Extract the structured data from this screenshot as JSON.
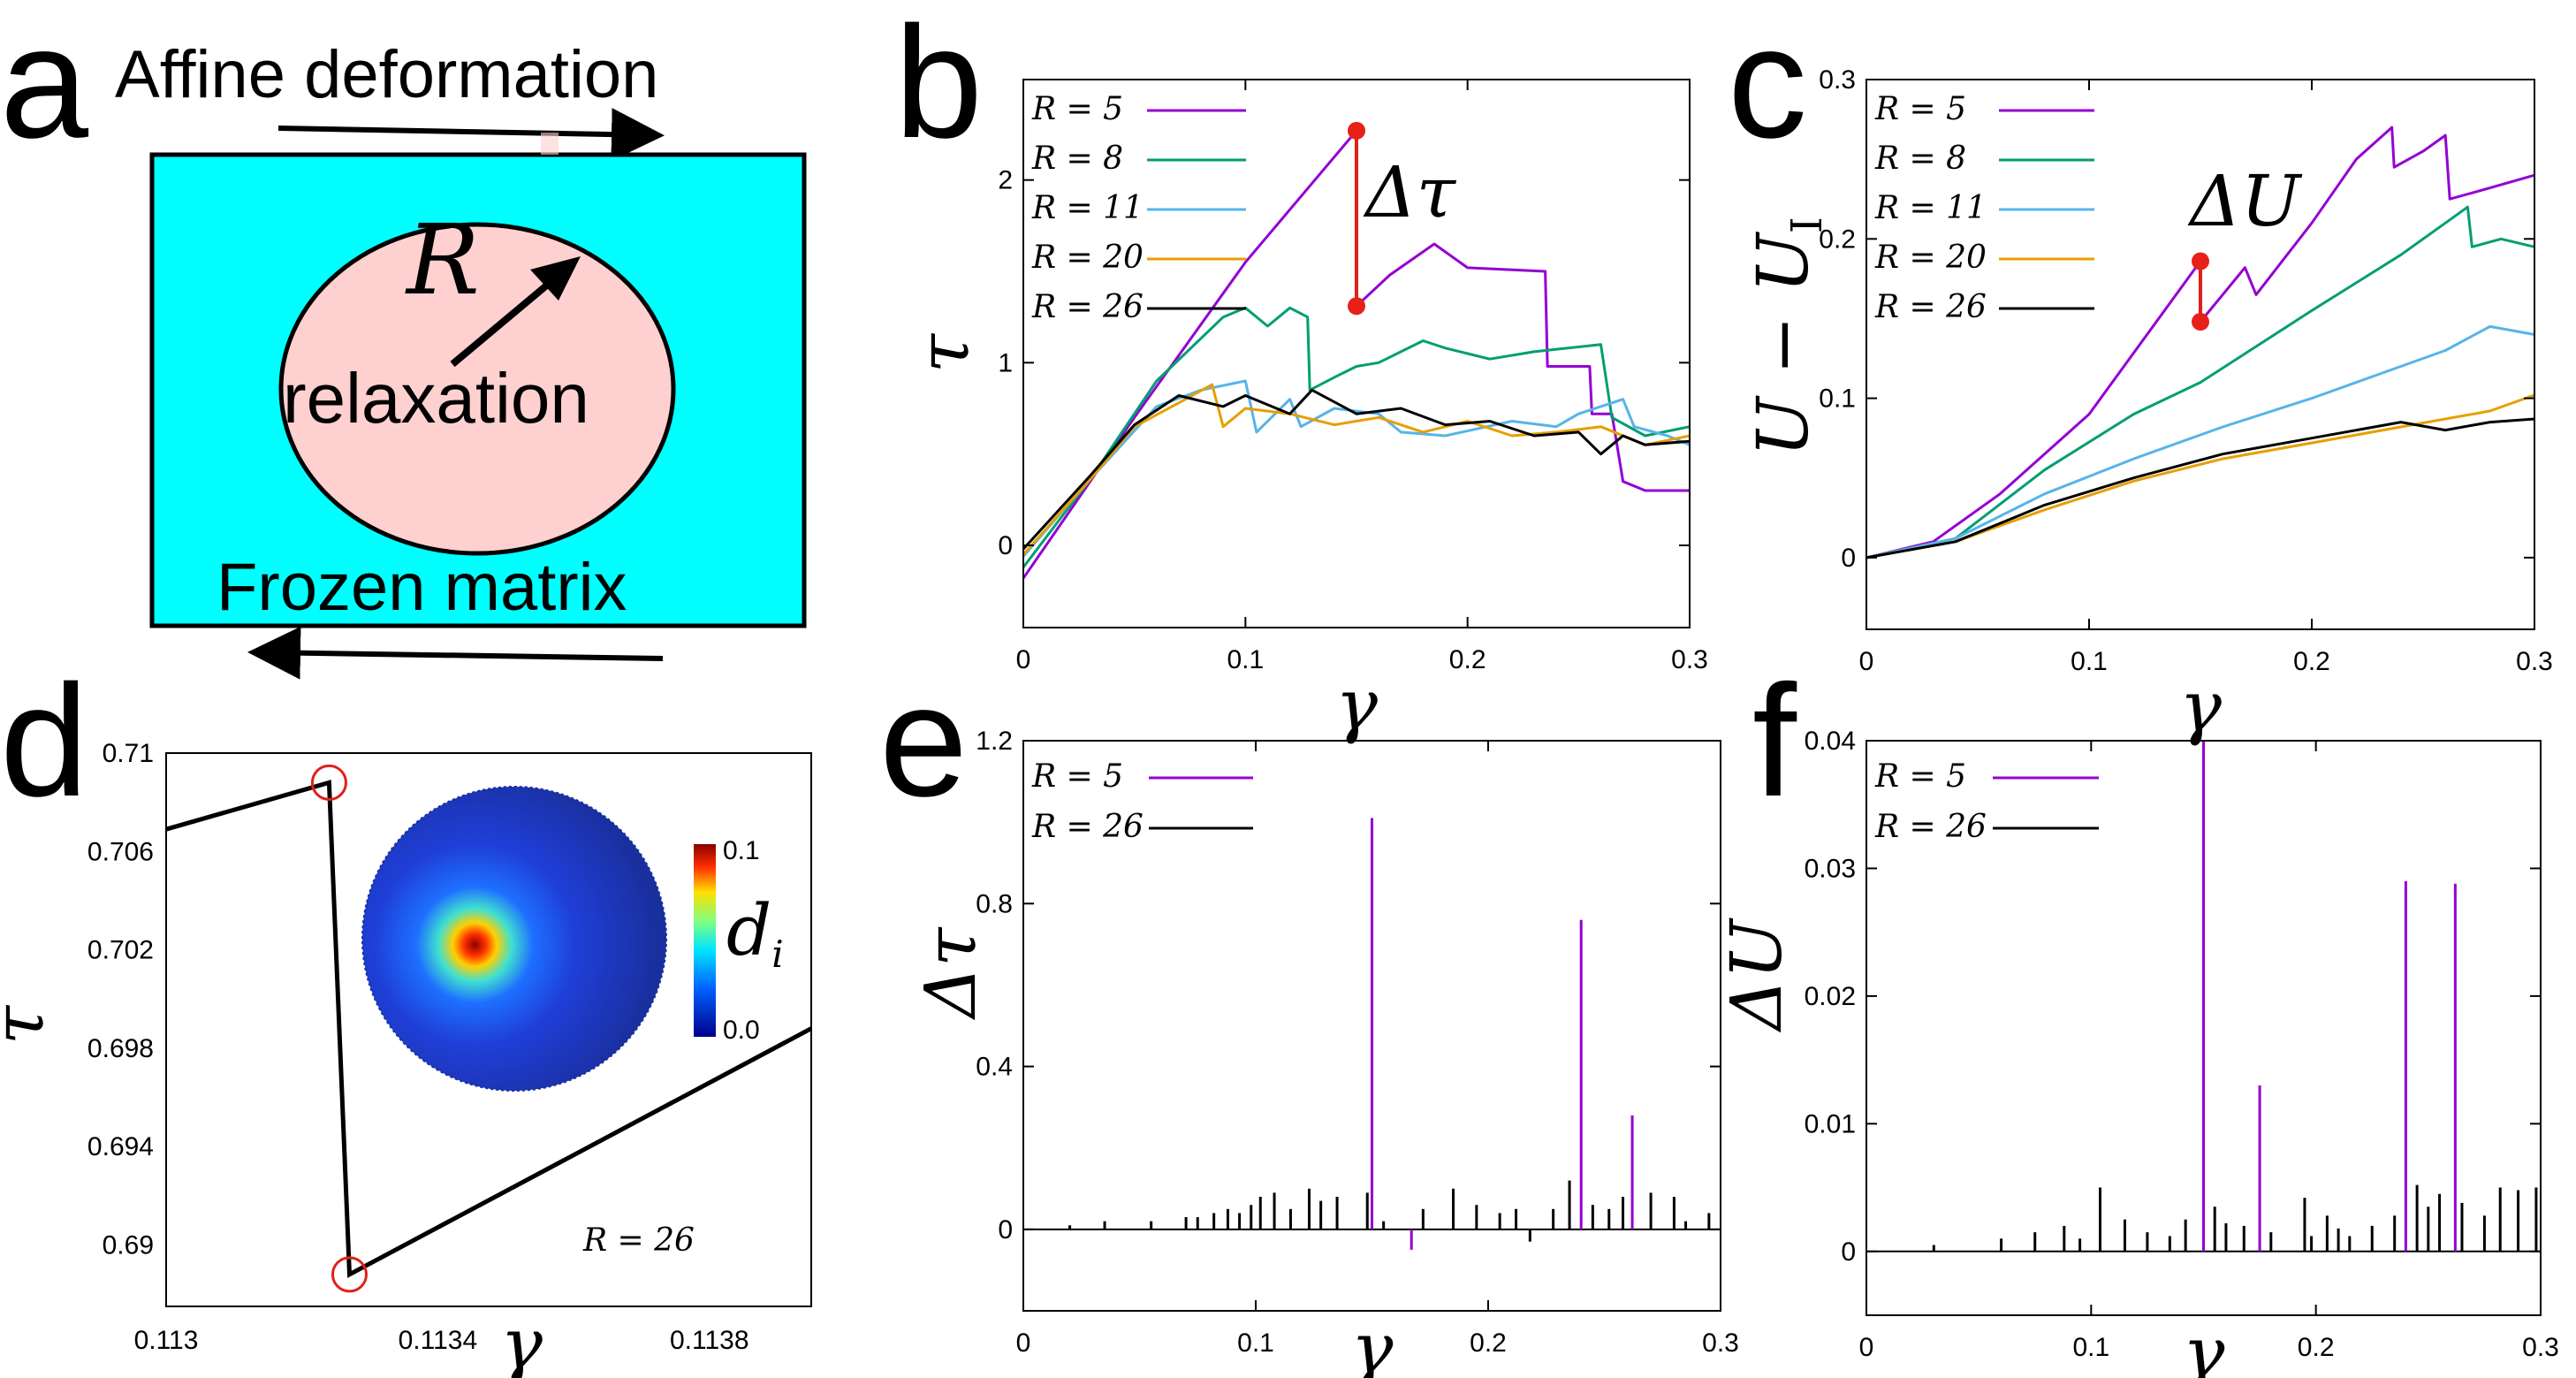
{
  "panel_labels": [
    "a",
    "b",
    "c",
    "d",
    "e",
    "f"
  ],
  "schematic": {
    "top_text": "Affine deformation",
    "bottom_text": "Frozen matrix",
    "radius_label": "R",
    "inner_text": "relaxation",
    "colors": {
      "matrix": "#00ffff",
      "region": "#ffd0d0"
    }
  },
  "chart_data": [
    {
      "id": "b",
      "type": "line",
      "xlabel": "γ",
      "ylabel": "τ",
      "xlim": [
        0,
        0.3
      ],
      "ylim": [
        -0.45,
        2.55
      ],
      "xticks": [
        0,
        0.1,
        0.2,
        0.3
      ],
      "xtick_labels": [
        "0",
        "0.1",
        "0.2",
        "0.3"
      ],
      "yticks": [
        0,
        1,
        2
      ],
      "ytick_labels": [
        "0",
        "1",
        "2"
      ],
      "annotation": {
        "text": "Δτ",
        "x": 0.15,
        "y_top": 2.27,
        "y_bottom": 1.31
      },
      "series": [
        {
          "name": "R = 5",
          "color": "#9400d3",
          "points": [
            [
              0,
              -0.18
            ],
            [
              0.05,
              0.7
            ],
            [
              0.1,
              1.55
            ],
            [
              0.15,
              2.27
            ],
            [
              0.15,
              1.31
            ],
            [
              0.165,
              1.48
            ],
            [
              0.185,
              1.65
            ],
            [
              0.2,
              1.52
            ],
            [
              0.235,
              1.5
            ],
            [
              0.236,
              0.98
            ],
            [
              0.255,
              0.98
            ],
            [
              0.256,
              0.72
            ],
            [
              0.265,
              0.72
            ],
            [
              0.27,
              0.35
            ],
            [
              0.28,
              0.3
            ],
            [
              0.3,
              0.3
            ]
          ]
        },
        {
          "name": "R = 8",
          "color": "#009e73",
          "points": [
            [
              0,
              -0.12
            ],
            [
              0.03,
              0.36
            ],
            [
              0.06,
              0.9
            ],
            [
              0.09,
              1.25
            ],
            [
              0.1,
              1.3
            ],
            [
              0.11,
              1.2
            ],
            [
              0.12,
              1.3
            ],
            [
              0.128,
              1.25
            ],
            [
              0.129,
              0.85
            ],
            [
              0.14,
              0.92
            ],
            [
              0.15,
              0.98
            ],
            [
              0.16,
              1.0
            ],
            [
              0.18,
              1.12
            ],
            [
              0.19,
              1.08
            ],
            [
              0.2,
              1.05
            ],
            [
              0.21,
              1.02
            ],
            [
              0.23,
              1.06
            ],
            [
              0.26,
              1.1
            ],
            [
              0.265,
              0.7
            ],
            [
              0.28,
              0.6
            ],
            [
              0.3,
              0.65
            ]
          ]
        },
        {
          "name": "R = 11",
          "color": "#56b4e9",
          "points": [
            [
              0,
              -0.06
            ],
            [
              0.03,
              0.36
            ],
            [
              0.06,
              0.76
            ],
            [
              0.08,
              0.85
            ],
            [
              0.1,
              0.9
            ],
            [
              0.105,
              0.62
            ],
            [
              0.12,
              0.8
            ],
            [
              0.125,
              0.65
            ],
            [
              0.14,
              0.75
            ],
            [
              0.16,
              0.72
            ],
            [
              0.17,
              0.62
            ],
            [
              0.19,
              0.6
            ],
            [
              0.22,
              0.68
            ],
            [
              0.24,
              0.65
            ],
            [
              0.25,
              0.72
            ],
            [
              0.27,
              0.8
            ],
            [
              0.275,
              0.65
            ],
            [
              0.29,
              0.6
            ],
            [
              0.3,
              0.55
            ]
          ]
        },
        {
          "name": "R = 20",
          "color": "#e69f00",
          "points": [
            [
              0,
              -0.05
            ],
            [
              0.03,
              0.36
            ],
            [
              0.05,
              0.65
            ],
            [
              0.07,
              0.78
            ],
            [
              0.085,
              0.88
            ],
            [
              0.09,
              0.65
            ],
            [
              0.1,
              0.75
            ],
            [
              0.12,
              0.72
            ],
            [
              0.14,
              0.66
            ],
            [
              0.16,
              0.7
            ],
            [
              0.18,
              0.62
            ],
            [
              0.2,
              0.68
            ],
            [
              0.22,
              0.6
            ],
            [
              0.24,
              0.62
            ],
            [
              0.26,
              0.65
            ],
            [
              0.28,
              0.55
            ],
            [
              0.3,
              0.6
            ]
          ]
        },
        {
          "name": "R = 26",
          "color": "#000000",
          "points": [
            [
              0,
              -0.02
            ],
            [
              0.03,
              0.38
            ],
            [
              0.05,
              0.66
            ],
            [
              0.07,
              0.82
            ],
            [
              0.09,
              0.76
            ],
            [
              0.1,
              0.82
            ],
            [
              0.12,
              0.72
            ],
            [
              0.13,
              0.85
            ],
            [
              0.15,
              0.72
            ],
            [
              0.17,
              0.75
            ],
            [
              0.19,
              0.66
            ],
            [
              0.21,
              0.68
            ],
            [
              0.23,
              0.6
            ],
            [
              0.25,
              0.62
            ],
            [
              0.26,
              0.5
            ],
            [
              0.27,
              0.6
            ],
            [
              0.28,
              0.55
            ],
            [
              0.3,
              0.57
            ]
          ]
        }
      ]
    },
    {
      "id": "c",
      "type": "line",
      "xlabel": "γ",
      "ylabel": "U − U",
      "ylabel_subscript": "I",
      "xlim": [
        0,
        0.3
      ],
      "ylim": [
        -0.045,
        0.3
      ],
      "xticks": [
        0,
        0.1,
        0.2,
        0.3
      ],
      "xtick_labels": [
        "0",
        "0.1",
        "0.2",
        "0.3"
      ],
      "yticks": [
        0,
        0.1,
        0.2,
        0.3
      ],
      "ytick_labels": [
        "0",
        "0.1",
        "0.2",
        "0.3"
      ],
      "annotation": {
        "text": "ΔU",
        "x": 0.15,
        "y_top": 0.186,
        "y_bottom": 0.148
      },
      "series": [
        {
          "name": "R = 5",
          "color": "#9400d3",
          "points": [
            [
              0,
              0
            ],
            [
              0.03,
              0.01
            ],
            [
              0.06,
              0.04
            ],
            [
              0.1,
              0.09
            ],
            [
              0.15,
              0.186
            ],
            [
              0.15,
              0.148
            ],
            [
              0.16,
              0.165
            ],
            [
              0.17,
              0.182
            ],
            [
              0.175,
              0.165
            ],
            [
              0.2,
              0.21
            ],
            [
              0.22,
              0.25
            ],
            [
              0.236,
              0.27
            ],
            [
              0.237,
              0.245
            ],
            [
              0.25,
              0.255
            ],
            [
              0.26,
              0.265
            ],
            [
              0.262,
              0.225
            ],
            [
              0.28,
              0.232
            ],
            [
              0.3,
              0.24
            ]
          ]
        },
        {
          "name": "R = 8",
          "color": "#009e73",
          "points": [
            [
              0,
              0
            ],
            [
              0.04,
              0.012
            ],
            [
              0.08,
              0.055
            ],
            [
              0.12,
              0.09
            ],
            [
              0.15,
              0.11
            ],
            [
              0.2,
              0.155
            ],
            [
              0.24,
              0.19
            ],
            [
              0.26,
              0.21
            ],
            [
              0.27,
              0.22
            ],
            [
              0.272,
              0.195
            ],
            [
              0.285,
              0.2
            ],
            [
              0.3,
              0.195
            ]
          ]
        },
        {
          "name": "R = 11",
          "color": "#56b4e9",
          "points": [
            [
              0,
              0
            ],
            [
              0.04,
              0.012
            ],
            [
              0.08,
              0.04
            ],
            [
              0.12,
              0.062
            ],
            [
              0.16,
              0.082
            ],
            [
              0.2,
              0.1
            ],
            [
              0.24,
              0.12
            ],
            [
              0.26,
              0.13
            ],
            [
              0.28,
              0.145
            ],
            [
              0.3,
              0.14
            ]
          ]
        },
        {
          "name": "R = 20",
          "color": "#e69f00",
          "points": [
            [
              0,
              0
            ],
            [
              0.04,
              0.01
            ],
            [
              0.08,
              0.03
            ],
            [
              0.12,
              0.048
            ],
            [
              0.16,
              0.062
            ],
            [
              0.2,
              0.072
            ],
            [
              0.24,
              0.082
            ],
            [
              0.28,
              0.092
            ],
            [
              0.3,
              0.102
            ]
          ]
        },
        {
          "name": "R = 26",
          "color": "#000000",
          "points": [
            [
              0,
              0
            ],
            [
              0.04,
              0.01
            ],
            [
              0.08,
              0.033
            ],
            [
              0.12,
              0.05
            ],
            [
              0.16,
              0.065
            ],
            [
              0.2,
              0.075
            ],
            [
              0.24,
              0.085
            ],
            [
              0.26,
              0.08
            ],
            [
              0.28,
              0.085
            ],
            [
              0.3,
              0.087
            ]
          ]
        }
      ]
    },
    {
      "id": "d",
      "type": "line",
      "xlabel": "γ",
      "ylabel": "τ",
      "xlim": [
        0.113,
        0.11395
      ],
      "ylim": [
        0.6875,
        0.71
      ],
      "xticks": [
        0.113,
        0.1134,
        0.1138
      ],
      "xtick_labels": [
        "0.113",
        "0.1134",
        "0.1138"
      ],
      "yticks": [
        0.69,
        0.694,
        0.698,
        0.702,
        0.706,
        0.71
      ],
      "ytick_labels": [
        "0.69",
        "0.694",
        "0.698",
        "0.702",
        "0.706",
        "0.71"
      ],
      "annotation": "R = 26",
      "markers": [
        [
          0.11324,
          0.7088
        ],
        [
          0.11327,
          0.6888
        ]
      ],
      "series": [
        {
          "name": "R = 26",
          "color": "#000000",
          "points": [
            [
              0.113,
              0.7069
            ],
            [
              0.11324,
              0.7088
            ],
            [
              0.11327,
              0.6888
            ],
            [
              0.11395,
              0.6988
            ]
          ]
        }
      ],
      "inset": {
        "colorbar_label": "d",
        "colorbar_subscript": "i",
        "colorbar_max": "0.1",
        "colorbar_min": "0.0"
      }
    },
    {
      "id": "e",
      "type": "bar",
      "xlabel": "γ",
      "ylabel": "Δτ",
      "xlim": [
        0,
        0.3
      ],
      "ylim": [
        -0.2,
        1.2
      ],
      "xticks": [
        0,
        0.1,
        0.2,
        0.3
      ],
      "xtick_labels": [
        "0",
        "0.1",
        "0.2",
        "0.3"
      ],
      "yticks": [
        0,
        0.4,
        0.8,
        1.2
      ],
      "ytick_labels": [
        "0",
        "0.4",
        "0.8",
        "1.2"
      ],
      "series": [
        {
          "name": "R = 5",
          "color": "#9400d3",
          "x": [
            0.15,
            0.167,
            0.24,
            0.262
          ],
          "values": [
            1.01,
            -0.05,
            0.76,
            0.28
          ]
        },
        {
          "name": "R = 26",
          "color": "#000000",
          "x": [
            0.02,
            0.035,
            0.055,
            0.07,
            0.075,
            0.082,
            0.088,
            0.093,
            0.098,
            0.102,
            0.108,
            0.115,
            0.123,
            0.128,
            0.135,
            0.148,
            0.155,
            0.172,
            0.185,
            0.195,
            0.205,
            0.212,
            0.218,
            0.228,
            0.235,
            0.245,
            0.252,
            0.258,
            0.27,
            0.28,
            0.285,
            0.295
          ],
          "values": [
            0.01,
            0.02,
            0.02,
            0.03,
            0.03,
            0.04,
            0.05,
            0.04,
            0.06,
            0.08,
            0.09,
            0.05,
            0.1,
            0.07,
            0.08,
            0.09,
            0.02,
            0.05,
            0.1,
            0.06,
            0.04,
            0.05,
            -0.03,
            0.05,
            0.12,
            0.06,
            0.05,
            0.08,
            0.09,
            0.08,
            0.02,
            0.04
          ]
        }
      ]
    },
    {
      "id": "f",
      "type": "bar",
      "xlabel": "γ",
      "ylabel": "ΔU",
      "xlim": [
        0,
        0.3
      ],
      "ylim": [
        -0.005,
        0.04
      ],
      "xticks": [
        0,
        0.1,
        0.2,
        0.3
      ],
      "xtick_labels": [
        "0",
        "0.1",
        "0.2",
        "0.3"
      ],
      "yticks": [
        0,
        0.01,
        0.02,
        0.03,
        0.04
      ],
      "ytick_labels": [
        "0",
        "0.01",
        "0.02",
        "0.03",
        "0.04"
      ],
      "series": [
        {
          "name": "R = 5",
          "color": "#9400d3",
          "x": [
            0.15,
            0.175,
            0.24,
            0.262
          ],
          "values": [
            0.04,
            0.013,
            0.029,
            0.0288
          ]
        },
        {
          "name": "R = 26",
          "color": "#000000",
          "x": [
            0.03,
            0.06,
            0.075,
            0.088,
            0.095,
            0.104,
            0.115,
            0.125,
            0.135,
            0.142,
            0.155,
            0.16,
            0.168,
            0.18,
            0.195,
            0.198,
            0.205,
            0.21,
            0.215,
            0.225,
            0.235,
            0.245,
            0.25,
            0.255,
            0.265,
            0.275,
            0.282,
            0.29,
            0.298
          ],
          "values": [
            0.0005,
            0.001,
            0.0015,
            0.002,
            0.001,
            0.005,
            0.0025,
            0.0015,
            0.0012,
            0.0025,
            0.0035,
            0.0022,
            0.002,
            0.0015,
            0.0042,
            0.0012,
            0.0028,
            0.0018,
            0.0012,
            0.002,
            0.0028,
            0.0052,
            0.0035,
            0.0045,
            0.0038,
            0.0028,
            0.005,
            0.0048,
            0.005
          ]
        }
      ]
    }
  ]
}
